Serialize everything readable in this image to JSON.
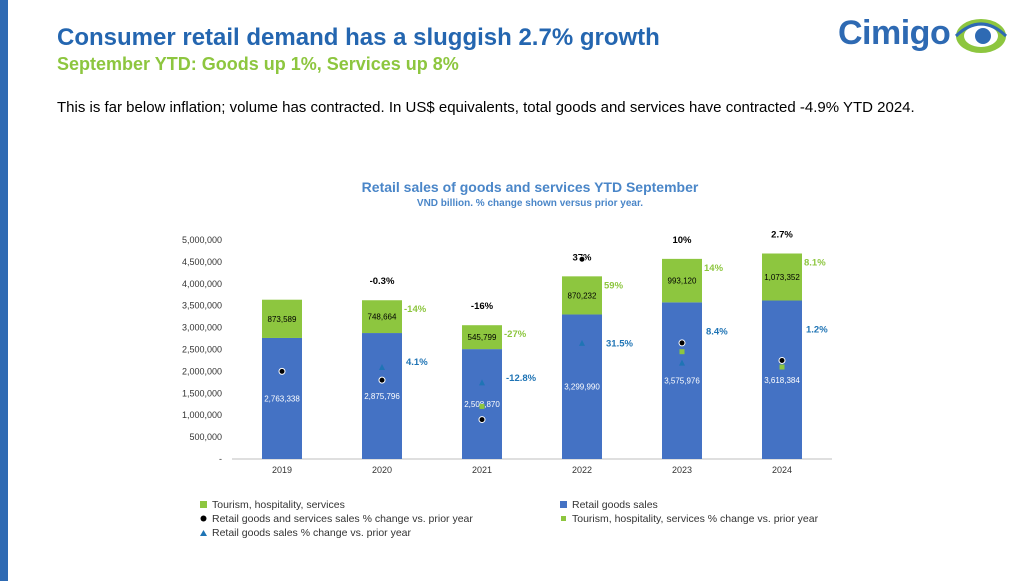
{
  "header": {
    "title": "Consumer retail demand has a sluggish 2.7% growth",
    "subtitle": "September YTD: Goods up 1%, Services up 8%",
    "body": "This is far below inflation; volume has contracted. In US$ equivalents, total goods and services have contracted -4.9% YTD 2024."
  },
  "logo": {
    "text": "Cimigo"
  },
  "colors": {
    "accent": "#2466b0",
    "goods": "#4472c4",
    "services": "#8dc63f",
    "total_pct": "#000000",
    "goods_pct": "#1f74b5"
  },
  "chart_data": {
    "type": "bar",
    "stacked": true,
    "title": "Retail sales of goods and services YTD September",
    "subtitle": "VND billion. % change shown versus prior year.",
    "categories": [
      "2019",
      "2020",
      "2021",
      "2022",
      "2023",
      "2024"
    ],
    "ylim": [
      0,
      5000000
    ],
    "yticks": [
      {
        "value": 0,
        "label": "-"
      },
      {
        "value": 500000,
        "label": "500,000"
      },
      {
        "value": 1000000,
        "label": "1,000,000"
      },
      {
        "value": 1500000,
        "label": "1,500,000"
      },
      {
        "value": 2000000,
        "label": "2,000,000"
      },
      {
        "value": 2500000,
        "label": "2,500,000"
      },
      {
        "value": 3000000,
        "label": "3,000,000"
      },
      {
        "value": 3500000,
        "label": "3,500,000"
      },
      {
        "value": 4000000,
        "label": "4,000,000"
      },
      {
        "value": 4500000,
        "label": "4,500,000"
      },
      {
        "value": 5000000,
        "label": "5,000,000"
      }
    ],
    "grid": false,
    "legend_position": "bottom",
    "series": [
      {
        "name": "Retail goods sales",
        "kind": "bar",
        "values": [
          2763338,
          2875796,
          2508870,
          3299990,
          3575976,
          3618384
        ],
        "labels": [
          "2,763,338",
          "2,875,796",
          "2,508,870",
          "3,299,990",
          "3,575,976",
          "3,618,384"
        ]
      },
      {
        "name": "Tourism, hospitality, services",
        "kind": "bar",
        "values": [
          873589,
          748664,
          545799,
          870232,
          993120,
          1073352
        ],
        "labels": [
          "873,589",
          "748,664",
          "545,799",
          "870,232",
          "993,120",
          "1,073,352"
        ]
      },
      {
        "name": "Retail goods and services sales % change vs. prior year",
        "kind": "marker",
        "values": [
          null,
          -0.3,
          -16,
          37,
          10,
          2.7
        ],
        "labels": [
          "",
          "-0.3%",
          "-16%",
          "37%",
          "10%",
          "2.7%"
        ]
      },
      {
        "name": "Tourism, hospitality, services % change vs. prior year",
        "kind": "marker",
        "values": [
          null,
          -14,
          -27,
          59,
          14,
          8.1
        ],
        "labels": [
          "",
          "-14%",
          "-27%",
          "59%",
          "14%",
          "8.1%"
        ]
      },
      {
        "name": "Retail goods sales % change vs. prior year",
        "kind": "marker",
        "values": [
          null,
          4.1,
          -12.8,
          31.5,
          8.4,
          1.2
        ],
        "labels": [
          "",
          "4.1%",
          "-12.8%",
          "31.5%",
          "8.4%",
          "1.2%"
        ]
      }
    ],
    "marker_positions": {
      "total": [
        2000000,
        1800000,
        900000,
        4560000,
        2650000,
        2250000
      ],
      "services": [
        null,
        null,
        1200000,
        null,
        2450000,
        2100000
      ],
      "goods": [
        null,
        2100000,
        1750000,
        2650000,
        2200000,
        null
      ]
    },
    "legend": [
      {
        "label": "Tourism, hospitality, services",
        "symbol": "square",
        "color": "#8dc63f"
      },
      {
        "label": "Retail goods sales",
        "symbol": "square",
        "color": "#4472c4"
      },
      {
        "label": "Retail goods and services sales % change vs. prior year",
        "symbol": "circle",
        "color": "#000000"
      },
      {
        "label": "Tourism, hospitality, services % change vs. prior year",
        "symbol": "square-small",
        "color": "#8dc63f"
      },
      {
        "label": "Retail goods sales % change vs. prior year",
        "symbol": "triangle",
        "color": "#1f74b5"
      }
    ]
  }
}
